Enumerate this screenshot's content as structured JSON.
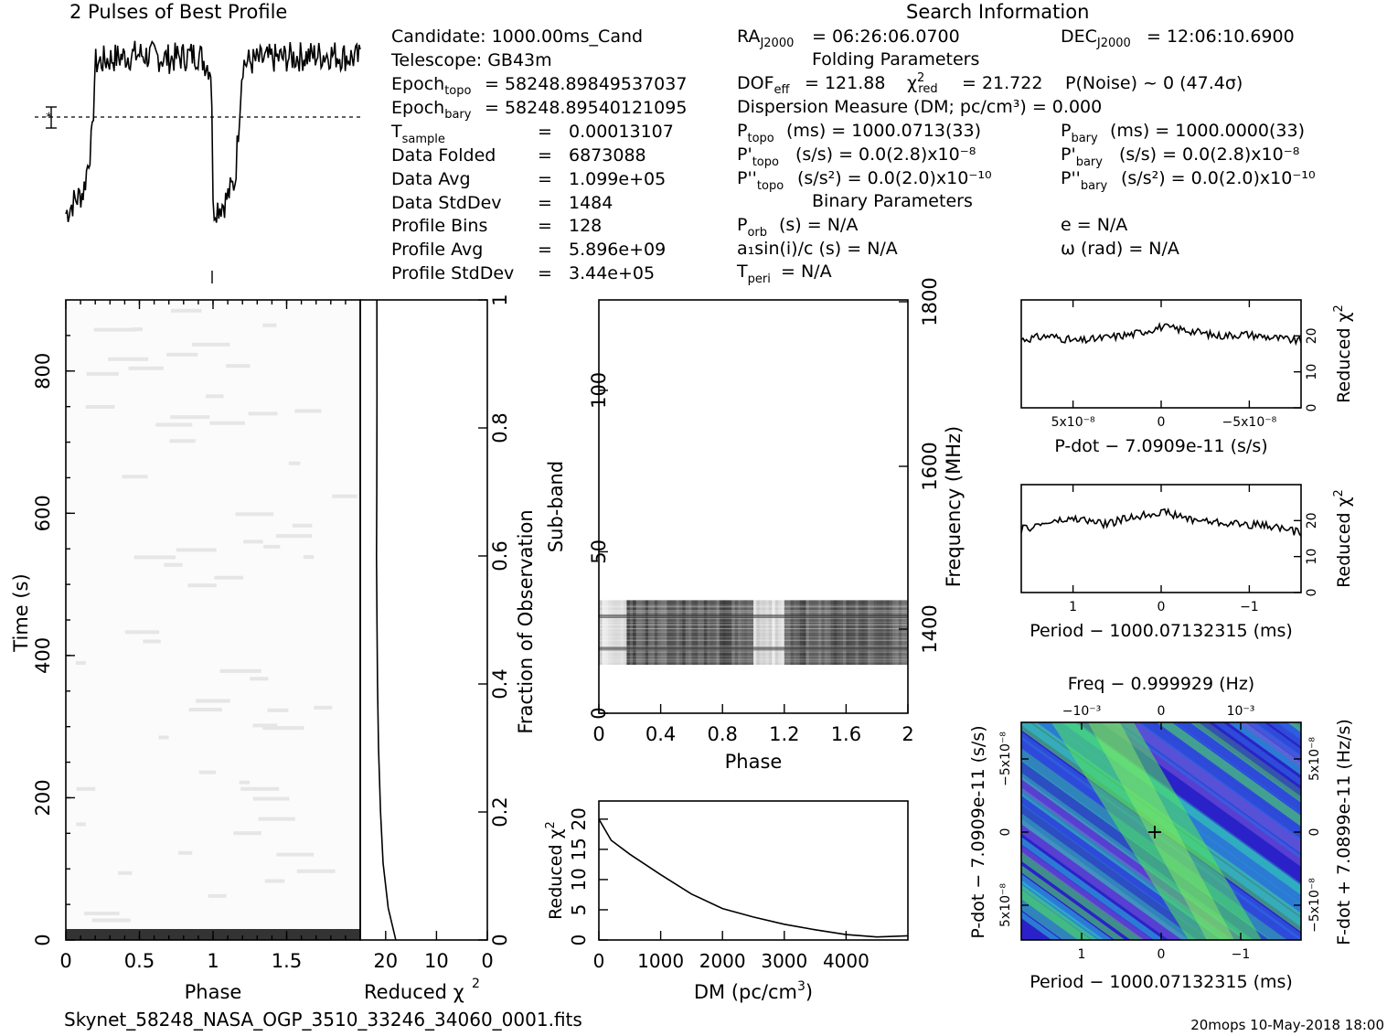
{
  "profile": {
    "title": "2 Pulses of Best Profile"
  },
  "search_info": {
    "title": "Search Information",
    "candidate": "Candidate:  1000.00ms_Cand",
    "telescope": "Telescope:  GB43m",
    "epoch_topo": "= 58248.89849537037",
    "epoch_bary": "= 58248.89540121095",
    "t_sample": "0.00013107",
    "data_folded": "6873088",
    "data_avg": "1.099e+05",
    "data_stddev": "1484",
    "profile_bins": "128",
    "profile_avg": "5.896e+09",
    "profile_stddev": "3.44e+05",
    "ra": "= 06:26:06.0700",
    "dec": "= 12:06:10.6900",
    "folding_title": "Folding Parameters",
    "dof_eff": "= 121.88",
    "chi2_red": "= 21.722",
    "p_noise": "P(Noise) ~ 0    (47.4σ)",
    "dm_line": "Dispersion Measure (DM; pc/cm³) = 0.000",
    "p_topo": "(ms) =  1000.0713(33)",
    "p_bary": "(ms) =  1000.0000(33)",
    "pd_topo": "(s/s) = 0.0(2.8)x10⁻⁸",
    "pd_bary": "(s/s) = 0.0(2.8)x10⁻⁸",
    "pdd_topo": "(s/s²) = 0.0(2.0)x10⁻¹⁰",
    "pdd_bary": "(s/s²) = 0.0(2.0)x10⁻¹⁰",
    "binary_title": "Binary Parameters",
    "p_orb": "(s) = N/A",
    "a1sini": "a₁sin(i)/c (s) = N/A",
    "t_peri": "= N/A",
    "ecc": "e = N/A",
    "omega": "ω (rad) = N/A"
  },
  "footer": {
    "filename": "Skynet_58248_NASA_OGP_3510_33246_34060_0001.fits",
    "stamp": "20mops 10-May-2018 18:00"
  },
  "colors": {
    "ink": "#000000",
    "contour_low": "#2a22c8",
    "contour_mid": "#2cc4e0",
    "contour_high": "#52e85a"
  },
  "chart_data": [
    {
      "type": "line",
      "name": "pulse-profile",
      "title": "2 Pulses of Best Profile",
      "x_range": [
        0,
        2
      ],
      "description_points": [
        [
          0.0,
          0.2
        ],
        [
          0.05,
          0.25
        ],
        [
          0.12,
          0.3
        ],
        [
          0.18,
          0.55
        ],
        [
          0.2,
          0.88
        ],
        [
          0.3,
          0.9
        ],
        [
          0.5,
          0.92
        ],
        [
          0.7,
          0.9
        ],
        [
          0.9,
          0.92
        ],
        [
          0.99,
          0.85
        ],
        [
          1.0,
          0.22
        ],
        [
          1.08,
          0.25
        ],
        [
          1.15,
          0.35
        ],
        [
          1.2,
          0.88
        ],
        [
          1.4,
          0.9
        ],
        [
          1.6,
          0.91
        ],
        [
          1.8,
          0.92
        ],
        [
          2.0,
          0.9
        ]
      ]
    },
    {
      "type": "heatmap",
      "name": "time-vs-phase",
      "xlabel": "Phase",
      "ylabel": "Time (s)",
      "xlim": [
        0,
        2
      ],
      "ylim": [
        0,
        900
      ],
      "xticks": [
        "0",
        "0.5",
        "1",
        "1.5"
      ],
      "yticks": [
        "0",
        "200",
        "400",
        "600",
        "800"
      ]
    },
    {
      "type": "line",
      "name": "reduced-chi2-vs-fraction",
      "xlabel": "Reduced χ²",
      "ylabel": "Fraction of Observation",
      "xlim": [
        25,
        0
      ],
      "ylim": [
        0,
        1
      ],
      "xticks": [
        "20",
        "10",
        "0"
      ],
      "yticks": [
        "0",
        "0.2",
        "0.4",
        "0.6",
        "0.8",
        "1"
      ],
      "x": [
        18,
        19.5,
        20.5,
        21,
        21.4,
        21.6,
        21.7,
        21.8,
        21.75,
        21.7,
        21.72
      ],
      "y": [
        0.0,
        0.05,
        0.12,
        0.2,
        0.3,
        0.4,
        0.5,
        0.6,
        0.7,
        0.85,
        1.0
      ]
    },
    {
      "type": "heatmap",
      "name": "subband-vs-phase",
      "xlabel": "Phase",
      "ylabel": "Sub-band",
      "y2label": "Frequency (MHz)",
      "xlim": [
        0,
        2
      ],
      "ylim": [
        0,
        128
      ],
      "xticks": [
        "0",
        "0.4",
        "0.8",
        "1.2",
        "1.6",
        "2"
      ],
      "yticks": [
        "0",
        "50",
        "100"
      ],
      "y2ticks": [
        "1400",
        "1600",
        "1800"
      ],
      "active_subbands": [
        15,
        35
      ]
    },
    {
      "type": "line",
      "name": "chi2-vs-dm",
      "xlabel": "DM (pc/cm³)",
      "ylabel": "Reduced χ²",
      "xlim": [
        0,
        5000
      ],
      "ylim": [
        0,
        23
      ],
      "xticks": [
        "0",
        "1000",
        "2000",
        "3000",
        "4000"
      ],
      "yticks": [
        "0",
        "5",
        "10",
        "15",
        "20"
      ],
      "x": [
        0,
        200,
        500,
        1000,
        1500,
        2000,
        2500,
        3000,
        3500,
        4000,
        4500,
        5000
      ],
      "y": [
        20,
        16.5,
        14.2,
        10.8,
        7.6,
        5.2,
        3.8,
        2.6,
        1.7,
        0.9,
        0.5,
        0.7
      ]
    },
    {
      "type": "line",
      "name": "chi2-vs-pdot",
      "xlabel": "P-dot − 7.0909e-11 (s/s)",
      "ylabel": "Reduced χ²",
      "xticks": [
        "5x10⁻⁸",
        "0",
        "−5x10⁻⁸"
      ],
      "yticks": [
        "0",
        "10",
        "20"
      ],
      "ylim": [
        0,
        30
      ],
      "x": [
        -1,
        -0.8,
        -0.6,
        -0.4,
        -0.2,
        0,
        0.2,
        0.4,
        0.6,
        0.8,
        1
      ],
      "y": [
        19,
        20,
        18.5,
        19.5,
        20.5,
        22.5,
        21.5,
        20,
        20.5,
        19.5,
        18.5
      ]
    },
    {
      "type": "line",
      "name": "chi2-vs-period",
      "xlabel": "Period − 1000.07132315 (ms)",
      "ylabel": "Reduced χ²",
      "xticks": [
        "1",
        "0",
        "−1"
      ],
      "yticks": [
        "0",
        "10",
        "20"
      ],
      "ylim": [
        0,
        30
      ],
      "x": [
        -1,
        -0.8,
        -0.6,
        -0.4,
        -0.2,
        0,
        0.2,
        0.4,
        0.6,
        0.8,
        1
      ],
      "y": [
        17.5,
        19.5,
        20.5,
        19,
        21,
        22.5,
        20.5,
        19.5,
        19,
        18.5,
        16.5
      ]
    },
    {
      "type": "heatmap",
      "name": "period-pdot-plane",
      "xlabel": "Period − 1000.07132315 (ms)",
      "ylabel": "P-dot − 7.0909e-11 (s/s)",
      "x2label": "Freq − 0.999929 (Hz)",
      "y2label": "F-dot + 7.0899e-11 (Hz/s)",
      "xticks": [
        "1",
        "0",
        "−1"
      ],
      "yticks": [
        "−5x10⁻⁸",
        "0",
        "5x10⁻⁸"
      ],
      "x2ticks": [
        "−10⁻³",
        "0",
        "10⁻³"
      ],
      "y2ticks": [
        "5x10⁻⁸",
        "0",
        "−5x10⁻⁸"
      ]
    }
  ]
}
